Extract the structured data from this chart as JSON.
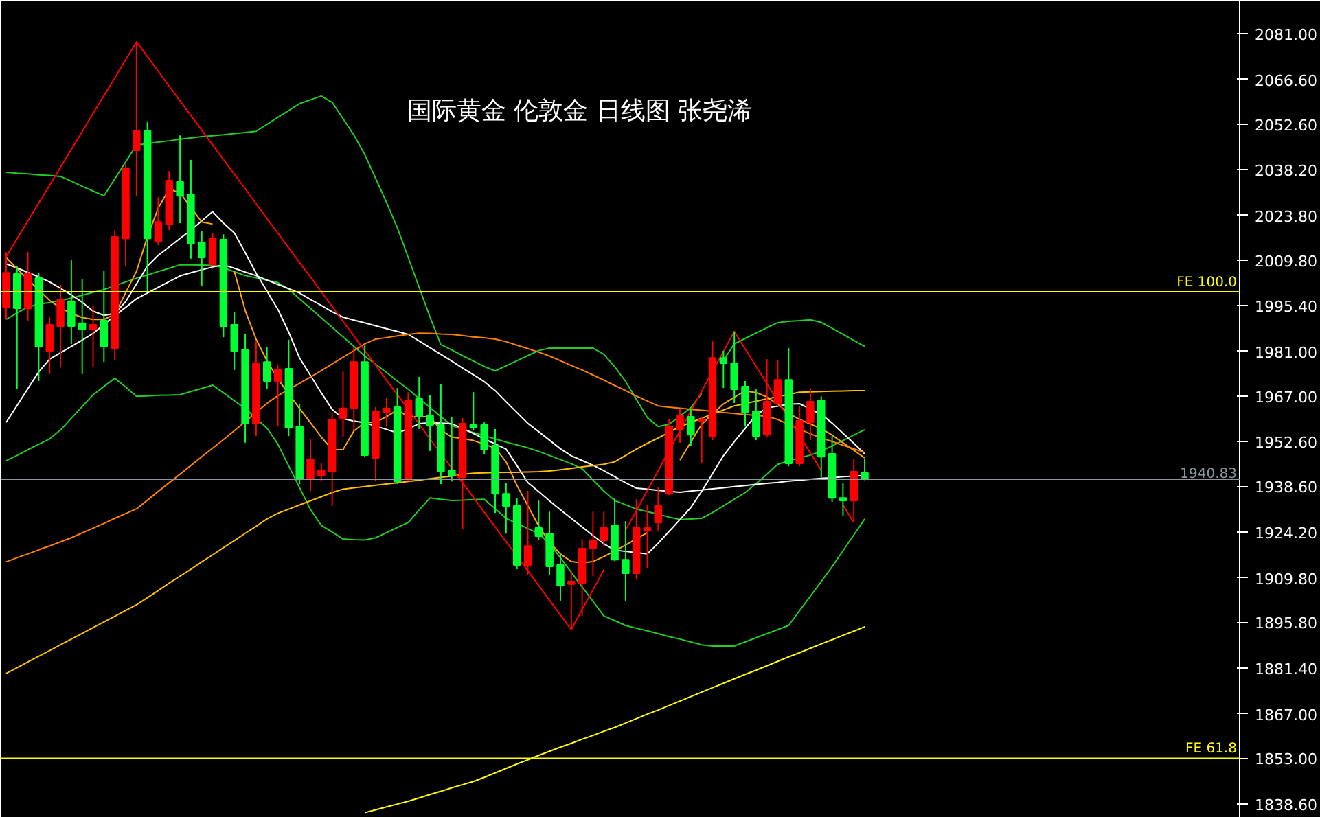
{
  "chart_data": {
    "type": "candlestick",
    "title": "国际黄金 伦敦金  日线图  张尧浠",
    "categories": [
      null,
      null,
      null,
      null,
      null,
      null,
      null,
      null,
      null,
      null,
      null,
      null,
      null,
      null,
      null,
      null,
      null,
      null,
      null,
      null,
      null,
      null,
      null,
      null,
      null,
      null,
      null,
      null,
      null,
      null,
      null,
      null,
      null,
      null,
      null,
      null,
      null,
      null,
      null,
      null,
      null,
      null,
      null,
      null,
      null,
      null,
      null,
      null,
      null,
      null,
      null,
      null,
      null,
      null,
      null,
      null,
      null,
      null,
      null,
      null,
      null,
      null,
      null,
      null,
      null,
      null,
      null,
      null,
      null,
      null,
      null,
      null,
      null,
      null,
      null,
      null,
      null,
      null,
      null,
      null
    ],
    "ohlc": [
      [
        1995.0,
        2012.3,
        1991.1,
        2005.8
      ],
      [
        2005.4,
        2008.0,
        1969.1,
        1994.6
      ],
      [
        1994.6,
        2012.3,
        1990.7,
        2005.4
      ],
      [
        2004.1,
        2005.8,
        1971.7,
        1982.5
      ],
      [
        1981.2,
        1992.0,
        1973.9,
        1989.4
      ],
      [
        1989.0,
        2002.0,
        1976.0,
        1997.2
      ],
      [
        1996.8,
        2009.7,
        1983.4,
        1989.0
      ],
      [
        1989.9,
        2003.7,
        1973.9,
        1988.1
      ],
      [
        1988.1,
        1995.5,
        1976.0,
        1989.4
      ],
      [
        1990.7,
        2006.3,
        1977.7,
        1982.5
      ],
      [
        1982.1,
        2019.2,
        1978.2,
        2017.1
      ],
      [
        2016.6,
        2040.4,
        2008.0,
        2038.7
      ],
      [
        2044.3,
        2078.4,
        2030.0,
        2050.4
      ],
      [
        2050.4,
        2053.4,
        1999.8,
        2016.6
      ],
      [
        2015.8,
        2029.6,
        2014.5,
        2021.8
      ],
      [
        2021.0,
        2037.8,
        2019.2,
        2034.8
      ],
      [
        2034.4,
        2049.0,
        2021.4,
        2030.0
      ],
      [
        2030.5,
        2041.3,
        2010.2,
        2014.9
      ],
      [
        2015.3,
        2018.8,
        2001.5,
        2010.6
      ],
      [
        2008.4,
        2018.4,
        2008.0,
        2016.6
      ],
      [
        2016.2,
        2017.9,
        1985.5,
        1989.0
      ],
      [
        1989.4,
        1993.3,
        1975.2,
        1981.2
      ],
      [
        1981.6,
        1986.4,
        1952.3,
        1958.3
      ],
      [
        1958.3,
        1984.2,
        1954.4,
        1977.3
      ],
      [
        1977.7,
        1982.5,
        1969.1,
        1971.7
      ],
      [
        1971.7,
        1976.9,
        1957.4,
        1975.2
      ],
      [
        1975.6,
        1984.7,
        1954.4,
        1957.0
      ],
      [
        1957.4,
        1964.4,
        1939.3,
        1941.0
      ],
      [
        1941.0,
        1953.5,
        1937.1,
        1947.1
      ],
      [
        1941.9,
        1945.8,
        1940.1,
        1943.6
      ],
      [
        1943.2,
        1961.8,
        1932.4,
        1959.6
      ],
      [
        1960.0,
        1974.7,
        1954.0,
        1963.1
      ],
      [
        1963.1,
        1982.5,
        1956.1,
        1977.7
      ],
      [
        1977.7,
        1982.9,
        1947.9,
        1948.4
      ],
      [
        1947.5,
        1963.5,
        1940.1,
        1962.2
      ],
      [
        1961.8,
        1966.5,
        1957.4,
        1963.1
      ],
      [
        1963.5,
        1969.5,
        1939.3,
        1940.1
      ],
      [
        1941.0,
        1968.2,
        1940.1,
        1965.6
      ],
      [
        1966.1,
        1973.0,
        1956.6,
        1960.5
      ],
      [
        1960.9,
        1967.4,
        1949.7,
        1957.9
      ],
      [
        1957.9,
        1970.8,
        1939.3,
        1943.2
      ],
      [
        1943.6,
        1960.5,
        1940.1,
        1941.9
      ],
      [
        1941.4,
        1960.0,
        1925.0,
        1958.3
      ],
      [
        1957.9,
        1968.2,
        1956.1,
        1957.0
      ],
      [
        1957.9,
        1958.7,
        1948.8,
        1950.1
      ],
      [
        1951.4,
        1956.6,
        1930.2,
        1936.2
      ],
      [
        1936.2,
        1939.7,
        1923.7,
        1932.4
      ],
      [
        1932.4,
        1934.9,
        1912.5,
        1913.8
      ],
      [
        1913.8,
        1937.1,
        1910.8,
        1919.8
      ],
      [
        1925.5,
        1934.1,
        1921.6,
        1922.9
      ],
      [
        1923.7,
        1930.6,
        1910.8,
        1913.4
      ],
      [
        1913.8,
        1917.3,
        1902.6,
        1907.3
      ],
      [
        1907.8,
        1912.1,
        1893.5,
        1908.6
      ],
      [
        1908.2,
        1922.0,
        1897.8,
        1919.0
      ],
      [
        1919.0,
        1930.6,
        1910.3,
        1921.6
      ],
      [
        1921.6,
        1930.6,
        1919.8,
        1925.5
      ],
      [
        1926.3,
        1934.9,
        1915.1,
        1915.5
      ],
      [
        1915.5,
        1927.6,
        1902.6,
        1911.2
      ],
      [
        1911.2,
        1934.5,
        1909.5,
        1925.5
      ],
      [
        1924.6,
        1932.8,
        1912.9,
        1925.5
      ],
      [
        1927.2,
        1938.4,
        1924.6,
        1932.4
      ],
      [
        1936.2,
        1959.6,
        1935.8,
        1957.4
      ],
      [
        1956.6,
        1963.1,
        1952.3,
        1960.9
      ],
      [
        1960.5,
        1963.1,
        1951.4,
        1954.8
      ],
      [
        1959.2,
        1960.5,
        1945.8,
        1959.6
      ],
      [
        1954.4,
        1984.2,
        1953.1,
        1979.0
      ],
      [
        1979.0,
        1981.2,
        1969.5,
        1977.3
      ],
      [
        1977.3,
        1987.3,
        1964.8,
        1969.1
      ],
      [
        1970.0,
        1971.7,
        1957.4,
        1961.8
      ],
      [
        1962.2,
        1969.1,
        1953.1,
        1954.4
      ],
      [
        1954.8,
        1978.6,
        1954.0,
        1965.2
      ],
      [
        1964.8,
        1978.2,
        1963.9,
        1972.1
      ],
      [
        1972.1,
        1982.1,
        1944.9,
        1945.8
      ],
      [
        1945.8,
        1963.9,
        1944.9,
        1959.2
      ],
      [
        1958.7,
        1969.5,
        1953.1,
        1965.2
      ],
      [
        1965.6,
        1966.9,
        1941.4,
        1947.9
      ],
      [
        1948.8,
        1954.4,
        1933.7,
        1934.9
      ],
      [
        1934.9,
        1939.7,
        1929.4,
        1934.1
      ],
      [
        1934.1,
        1947.1,
        1927.2,
        1943.2
      ],
      [
        1942.8,
        1947.1,
        1940.5,
        1940.83
      ]
    ],
    "colors": [
      "#ff0000",
      "#00ff33",
      "#ff0000",
      "#00ff33",
      "#ff0000",
      "#ff0000",
      "#00ff33",
      "#00ff33",
      "#ff0000",
      "#00ff33",
      "#ff0000",
      "#ff0000",
      "#ff0000",
      "#00ff33",
      "#ff0000",
      "#ff0000",
      "#00ff33",
      "#00ff33",
      "#00ff33",
      "#ff0000",
      "#00ff33",
      "#00ff33",
      "#00ff33",
      "#ff0000",
      "#00ff33",
      "#ff0000",
      "#00ff33",
      "#00ff33",
      "#ff0000",
      "#ff0000",
      "#ff0000",
      "#ff0000",
      "#ff0000",
      "#00ff33",
      "#ff0000",
      "#ff0000",
      "#00ff33",
      "#ff0000",
      "#00ff33",
      "#00ff33",
      "#00ff33",
      "#00ff33",
      "#ff0000",
      "#00ff33",
      "#00ff33",
      "#00ff33",
      "#00ff33",
      "#00ff33",
      "#ff0000",
      "#00ff33",
      "#00ff33",
      "#00ff33",
      "#ff0000",
      "#ff0000",
      "#ff0000",
      "#ff0000",
      "#00ff33",
      "#00ff33",
      "#ff0000",
      "#ff0000",
      "#ff0000",
      "#ff0000",
      "#ff0000",
      "#00ff33",
      "#ff0000",
      "#ff0000",
      "#00ff33",
      "#00ff33",
      "#00ff33",
      "#00ff33",
      "#ff0000",
      "#ff0000",
      "#00ff33",
      "#ff0000",
      "#ff0000",
      "#00ff33",
      "#00ff33",
      "#00ff33",
      "#ff0000",
      "#00ff33"
    ],
    "series": [
      {
        "type": "line",
        "color": "#22cc22",
        "values": [
          2037.4,
          2037.1,
          2036.9,
          2036.6,
          2036.4,
          2036.1,
          2034.6,
          2033.0,
          2031.5,
          2030.0,
          2035.3,
          2040.7,
          2046.0,
          2046.4,
          2046.9,
          2047.3,
          2047.8,
          2048.2,
          2048.6,
          2048.9,
          2049.2,
          2049.6,
          2049.9,
          2050.3,
          2052.5,
          2054.7,
          2056.8,
          2059.0,
          2060.2,
          2061.4,
          2059.4,
          2054.3,
          2049.1,
          2043.0,
          2035.5,
          2027.9,
          2019.9,
          2010.6,
          2001.2,
          1991.9,
          1983.2,
          1981.5,
          1979.7,
          1978.0,
          1976.3,
          1974.9,
          1976.5,
          1978.1,
          1979.7,
          1981.3,
          1982.1,
          1982.1,
          1982.1,
          1982.1,
          1982.1,
          1980.1,
          1976.2,
          1971.6,
          1965.9,
          1960.2,
          1957.4,
          1958.1,
          1960.7,
          1963.3,
          1967.8,
          null,
          1978.2,
          1983.4,
          1985.1,
          1986.8,
          1988.5,
          1990.1,
          1990.5,
          1990.7,
          1991.0,
          1990.2,
          1988.3,
          1986.4,
          1984.5,
          1982.6
        ]
      },
      {
        "type": "line",
        "color": "#22cc22",
        "values": [
          1991.1,
          1993.1,
          1995.0,
          1995.9,
          1996.4,
          1997.1,
          1997.8,
          1998.7,
          1999.6,
          2000.5,
          2001.7,
          2002.9,
          2004.1,
          2005.1,
          2006.2,
          2007.2,
          2008.3,
          2008.3,
          2008.2,
          2008.1,
          2007.4,
          2006.1,
          2004.9,
          2004.2,
          2003.4,
          2002.7,
          2000.6,
          1997.6,
          1994.6,
          1991.6,
          1988.6,
          1985.6,
          1982.6,
          1979.6,
          1977.0,
          1974.4,
          1971.7,
          1969.1,
          1966.2,
          1963.4,
          1960.5,
          1957.7,
          1956.5,
          1955.5,
          1954.5,
          1953.5,
          1952.5,
          1951.6,
          1950.7,
          1949.6,
          1948.3,
          1947.0,
          1945.7,
          1944.1,
          1940.6,
          1937.1,
          1934.1,
          1932.8,
          1931.4,
          1930.6,
          1929.8,
          1928.9,
          1928.1,
          1928.3,
          1928.5,
          1930.3,
          1932.4,
          1934.5,
          1936.6,
          1939.4,
          1942.4,
          1945.5,
          1946.6,
          1947.5,
          1948.4,
          1949.6,
          1951.3,
          1953.0,
          1954.7,
          1956.4
        ]
      },
      {
        "type": "line",
        "color": "#22cc22",
        "values": [
          1946.6,
          1948.3,
          1950.1,
          1951.8,
          1953.5,
          1956.3,
          1960.0,
          1963.7,
          1967.4,
          1970.0,
          1972.6,
          1969.8,
          1966.9,
          1967.0,
          1967.2,
          1967.3,
          1967.4,
          1968.4,
          1969.4,
          1970.4,
          1968.0,
          1965.5,
          1963.1,
          1960.0,
          1956.9,
          1951.9,
          1945.0,
          1938.2,
          1931.3,
          1926.3,
          1924.2,
          1922.0,
          1921.8,
          1921.7,
          1922.4,
          1924.0,
          1925.6,
          1927.2,
          1931.1,
          1934.9,
          1934.5,
          1934.1,
          1934.2,
          1934.4,
          1934.5,
          1931.5,
          1928.5,
          1926.9,
          1925.3,
          1923.7,
          1920.6,
          1916.1,
          1911.5,
          1906.9,
          1902.4,
          1897.8,
          1896.3,
          1894.8,
          1893.9,
          1893.1,
          1892.2,
          1891.3,
          1890.5,
          1889.6,
          1888.7,
          1888.3,
          1888.3,
          1888.3,
          1889.6,
          1890.9,
          1892.2,
          1893.5,
          1894.8,
          1899.4,
          1904.0,
          1908.6,
          1913.3,
          1918.3,
          1923.3,
          1928.3
        ]
      },
      {
        "type": "line",
        "color": "#ffffff",
        "values": [
          2008.6,
          2007.3,
          2005.9,
          2004.5,
          2002.9,
          2000.9,
          1998.8,
          1996.5,
          1993.7,
          1992.4,
          1993.0,
          1996.7,
          2002.3,
          2007.9,
          2011.3,
          2013.9,
          2016.6,
          2019.2,
          2022.1,
          2025.0,
          2021.4,
          2018.3,
          2012.1,
          2005.7,
          2000.0,
          1994.3,
          1987.1,
          1979.0,
          1973.5,
          1968.0,
          1962.8,
          1959.9,
          1959.1,
          1958.6,
          1957.5,
          1956.5,
          1955.4,
          1956.7,
          1958.3,
          1958.6,
          1958.5,
          1958.3,
          1956.8,
          1955.2,
          1953.5,
          1951.9,
          1950.3,
          1945.1,
          1939.8,
          1936.9,
          1934.0,
          1931.2,
          1928.5,
          1925.8,
          1923.1,
          1920.5,
          1918.5,
          1918.1,
          1917.7,
          1917.3,
          1920.7,
          1924.4,
          1928.1,
          1931.9,
          1937.0,
          1942.6,
          1948.2,
          1952.6,
          1956.8,
          1961.0,
          1963.3,
          1963.8,
          1964.4,
          1964.6,
          1962.9,
          1961.2,
          1958.5,
          1955.3,
          1952.1,
          1948.8
        ]
      },
      {
        "type": "line",
        "color": "#ffffff",
        "values": [
          1958.7,
          1964.0,
          1969.3,
          1974.6,
          1978.6,
          1980.6,
          1982.6,
          1984.6,
          1986.7,
          1989.5,
          1992.3,
          1994.9,
          1997.6,
          1999.4,
          2001.2,
          2003.0,
          2004.8,
          2005.8,
          2006.7,
          2007.6,
          2008.3,
          2007.2,
          2006.0,
          2004.9,
          2003.5,
          2002.1,
          2000.8,
          1999.4,
          1997.4,
          1995.5,
          1993.5,
          1991.8,
          1990.9,
          1990.0,
          1989.1,
          1988.2,
          1987.3,
          1986.4,
          1984.3,
          1982.2,
          1980.1,
          1978.0,
          1975.8,
          1973.7,
          1971.5,
          1968.7,
          1965.2,
          1961.8,
          1958.4,
          1955.8,
          1953.1,
          1950.4,
          1948.2,
          1946.7,
          1945.2,
          1943.5,
          1941.6,
          1939.7,
          1938.0,
          1937.7,
          1937.3,
          1937.0,
          1936.7,
          1937.1,
          1937.4,
          1937.8,
          1938.1,
          1938.5,
          1938.8,
          1939.2,
          1939.5,
          1939.8,
          1940.2,
          1940.5,
          1940.8,
          1941.1,
          1941.3,
          1941.6,
          1941.8,
          1942.0
        ]
      },
      {
        "type": "line",
        "color": "#ffa500",
        "values": [
          2010.6,
          2007.1,
          2003.7,
          2000.4,
          1997.1,
          1994.7,
          1993.0,
          1991.7,
          1991.1,
          1991.1,
          1992.7,
          1999.5,
          2006.3,
          2017.1,
          2026.2,
          2032.1,
          2031.0,
          2026.3,
          2021.8,
          2021.1,
          null,
          2006.2,
          1993.9,
          1984.9,
          1978.1,
          1972.4,
          1967.7,
          1963.1,
          1958.6,
          1954.1,
          1950.1,
          1950.1,
          1956.0,
          1958.7,
          1958.7,
          1960.5,
          1962.6,
          1960.5,
          1960.5,
          1960.5,
          1956.3,
          1954.1,
          1953.6,
          1953.0,
          1951.8,
          1950.6,
          1946.3,
          1938.9,
          1932.5,
          1926.1,
          1921.0,
          1917.3,
          1914.9,
          1914.5,
          1914.9,
          1916.5,
          1918.2,
          1920.1,
          1922.1,
          1924.0,
          null,
          null,
          1946.8,
          1952.5,
          1958.1,
          1961.4,
          1964.5,
          1966.6,
          1968.6,
          1968.1,
          1966.7,
          1964.4,
          1961.6,
          1959.6,
          1958.2,
          1956.7,
          1954.7,
          1952.3,
          1949.9,
          1947.5
        ]
      },
      {
        "type": "line",
        "color": "#ff7f00",
        "values": [
          1914.8,
          1916.1,
          1917.3,
          1918.6,
          1919.8,
          1921.1,
          1922.4,
          1923.9,
          1925.4,
          1926.9,
          1928.5,
          1930.0,
          1931.5,
          1934.2,
          1937.0,
          1939.7,
          1942.4,
          1945.1,
          1947.9,
          1950.6,
          1953.3,
          1956.1,
          1958.9,
          1961.8,
          1964.7,
          1967.1,
          1969.1,
          1971.0,
          1973.0,
          1975.0,
          1977.1,
          1979.2,
          1981.3,
          1983.4,
          1984.9,
          1985.4,
          1985.9,
          1986.4,
          1986.8,
          1986.7,
          1986.5,
          1986.4,
          1986.0,
          1985.6,
          1985.3,
          1984.9,
          1984.1,
          1983.0,
          1981.9,
          1980.8,
          1979.6,
          1978.1,
          1976.6,
          1975.2,
          1973.6,
          1972.0,
          1970.3,
          1968.7,
          1967.0,
          1965.4,
          1963.9,
          1963.5,
          1963.2,
          1962.8,
          1962.5,
          1962.2,
          1961.8,
          1961.5,
          1961.2,
          1960.9,
          1960.6,
          1959.6,
          1958.1,
          1956.6,
          1955.1,
          1953.8,
          1952.7,
          1951.5,
          1950.4,
          1949.2
        ]
      },
      {
        "type": "line",
        "color": "#ffc000",
        "values": [
          1879.7,
          1881.5,
          1883.3,
          1885.1,
          1886.9,
          1888.7,
          1890.5,
          1892.3,
          1894.1,
          1895.9,
          1897.7,
          1899.5,
          1901.3,
          1903.5,
          1905.8,
          1908.1,
          1910.3,
          1912.5,
          1914.8,
          1917.0,
          1919.3,
          1921.5,
          1923.8,
          1926.0,
          1928.3,
          1930.1,
          1931.4,
          1932.7,
          1934.0,
          1935.3,
          1936.6,
          1937.7,
          1938.1,
          1938.5,
          1938.9,
          1939.3,
          1939.7,
          1940.1,
          1940.5,
          1941.0,
          1941.4,
          1941.8,
          1942.3,
          1942.7,
          1942.8,
          1942.9,
          1943.0,
          1943.0,
          1943.1,
          1943.2,
          1943.4,
          1943.8,
          1944.2,
          1944.7,
          1945.1,
          1945.5,
          1946.3,
          1948.3,
          1950.3,
          1952.1,
          1953.8,
          1955.6,
          1957.4,
          1958.7,
          1960.0,
          1961.3,
          1962.6,
          1963.9,
          1964.6,
          1965.4,
          1966.1,
          1966.8,
          1967.5,
          1968.2,
          1968.3,
          1968.4,
          1968.5,
          1968.6,
          1968.7,
          1968.7
        ]
      },
      {
        "type": "line",
        "color": "#ffff00",
        "values": [
          null,
          null,
          null,
          null,
          null,
          null,
          null,
          null,
          null,
          null,
          null,
          null,
          null,
          null,
          null,
          null,
          null,
          null,
          null,
          null,
          null,
          null,
          null,
          null,
          null,
          null,
          null,
          null,
          null,
          null,
          null,
          null,
          null,
          1835.9,
          1836.8,
          1837.7,
          1838.6,
          1839.5,
          1840.5,
          1841.6,
          1842.6,
          1843.7,
          1844.7,
          1845.7,
          1847.0,
          1848.4,
          1849.8,
          1851.2,
          1852.5,
          1853.9,
          1855.2,
          1856.5,
          1857.7,
          1859.0,
          1860.2,
          1861.5,
          1862.7,
          1864.1,
          1865.5,
          1866.9,
          1868.2,
          1869.6,
          1871.0,
          1872.4,
          1873.8,
          1875.2,
          1876.6,
          1878.0,
          1879.4,
          1880.7,
          1882.1,
          1883.5,
          1884.9,
          1886.2,
          1887.6,
          1889.0,
          1890.3,
          1891.7,
          1893.0,
          1894.4
        ]
      },
      {
        "type": "line",
        "color": "#ff0000",
        "values": [
          2010.8,
          2016.4,
          2022.1,
          2027.7,
          2033.3,
          2039.0,
          2044.6,
          2050.2,
          2055.9,
          2061.5,
          2067.1,
          2072.8,
          2078.4,
          2073.8,
          2069.2,
          2064.5,
          2059.9,
          2055.3,
          2050.7,
          2046.0,
          2041.4,
          2036.8,
          2032.2,
          2027.5,
          2022.9,
          2018.3,
          2013.6,
          2009.0,
          2004.5,
          1999.8,
          1995.2,
          1990.5,
          1985.9,
          1981.3,
          1976.7,
          1972.0,
          1967.4,
          1962.8,
          1958.2,
          1953.5,
          1948.9,
          1944.3,
          1939.7,
          1935.1,
          1930.4,
          1925.8,
          1921.2,
          1916.6,
          1912.0,
          1907.4,
          1902.7,
          1898.1,
          1893.5,
          1899.8,
          1906.0,
          1912.3,
          null,
          1924.8,
          1931.0,
          1937.3,
          1943.5,
          1949.8,
          1956.0,
          1962.3,
          1968.5,
          1974.8,
          1981.0,
          1987.3,
          1981.8,
          1976.4,
          1970.9,
          1965.4,
          1960.0,
          1954.5,
          1949.1,
          1943.6,
          null,
          1932.7,
          1927.2,
          null
        ]
      }
    ],
    "ylim": [
      1834.3,
      2091.4
    ],
    "yticks": [
      {
        "value": 2081,
        "label": "2081.00"
      },
      {
        "value": 2066.6,
        "label": "2066.60"
      },
      {
        "value": 2052.6,
        "label": "2052.60"
      },
      {
        "value": 2038.2,
        "label": "2038.20"
      },
      {
        "value": 2023.8,
        "label": "2023.80"
      },
      {
        "value": 2009.8,
        "label": "2009.80"
      },
      {
        "value": 1995.4,
        "label": "1995.40"
      },
      {
        "value": 1981,
        "label": "1981.00"
      },
      {
        "value": 1967,
        "label": "1967.00"
      },
      {
        "value": 1952.6,
        "label": "1952.60"
      },
      {
        "value": 1938.6,
        "label": "1938.60"
      },
      {
        "value": 1924.2,
        "label": "1924.20"
      },
      {
        "value": 1909.8,
        "label": "1909.80"
      },
      {
        "value": 1895.8,
        "label": "1895.80"
      },
      {
        "value": 1881.4,
        "label": "1881.40"
      },
      {
        "value": 1867,
        "label": "1867.00"
      },
      {
        "value": 1853,
        "label": "1853.00"
      },
      {
        "value": 1838.6,
        "label": "1838.60"
      }
    ],
    "ref_lines": [
      {
        "axis": "y",
        "value": 1999.8,
        "label": "FE 100.0",
        "color": "#ffff00"
      },
      {
        "axis": "y",
        "value": 1853.0,
        "label": "FE 61.8",
        "color": "#ffff00"
      },
      {
        "axis": "y",
        "value": 1940.83,
        "label": "1940.83",
        "color": "#8c96a0"
      }
    ],
    "tick_labels": "y"
  }
}
